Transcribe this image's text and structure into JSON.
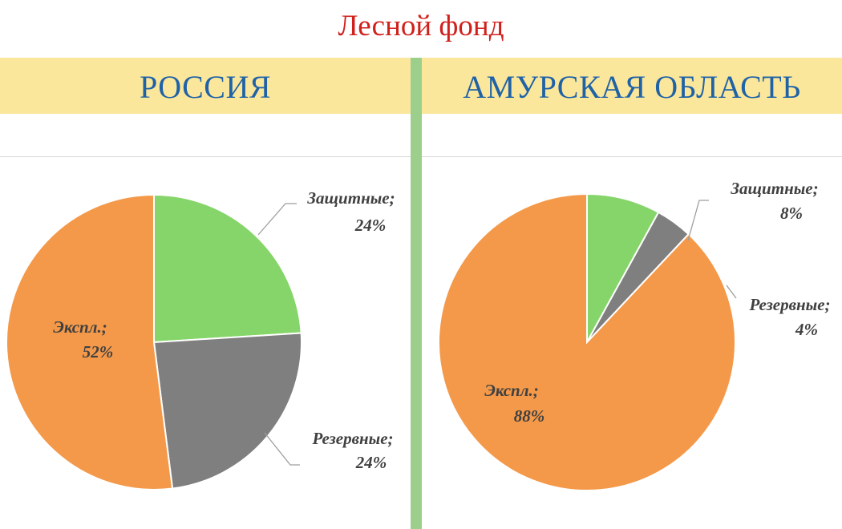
{
  "title": "Лесной фонд",
  "chart_data": [
    {
      "type": "pie",
      "title": "РОССИЯ",
      "slices": [
        {
          "name": "Защитные",
          "value": 24,
          "label": "24%",
          "color": "#86d56a"
        },
        {
          "name": "Резервные",
          "value": 24,
          "label": "24%",
          "color": "#7f7f7f"
        },
        {
          "name": "Экспл.",
          "value": 52,
          "label": "52%",
          "color": "#f4994a"
        }
      ]
    },
    {
      "type": "pie",
      "title": "АМУРСКАЯ ОБЛАСТЬ",
      "slices": [
        {
          "name": "Защитные",
          "value": 8,
          "label": "8%",
          "color": "#86d56a"
        },
        {
          "name": "Резервные",
          "value": 4,
          "label": "4%",
          "color": "#7f7f7f"
        },
        {
          "name": "Экспл.",
          "value": 88,
          "label": "88%",
          "color": "#f4994a"
        }
      ]
    }
  ]
}
